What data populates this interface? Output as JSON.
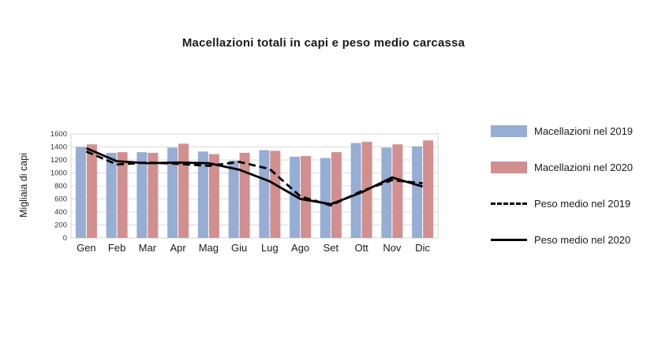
{
  "chart_data": {
    "type": "bar+line",
    "title": "Macellazioni totali in capi e peso medio carcassa",
    "ylabel": "Migliaia di capi",
    "ylim": [
      0,
      1600
    ],
    "yticks": [
      0,
      200,
      400,
      600,
      800,
      1000,
      1200,
      1400,
      1600
    ],
    "grid": true,
    "legend_position": "right",
    "categories": [
      "Gen",
      "Feb",
      "Mar",
      "Apr",
      "Mag",
      "Giu",
      "Lug",
      "Ago",
      "Set",
      "Ott",
      "Nov",
      "Dic"
    ],
    "bar_series": [
      {
        "name": "Macellazioni nel 2019",
        "color": "#96add4",
        "values": [
          1400,
          1310,
          1320,
          1390,
          1330,
          1190,
          1350,
          1250,
          1230,
          1460,
          1390,
          1410
        ]
      },
      {
        "name": "Macellazioni nel 2020",
        "color": "#d28f8f",
        "values": [
          1440,
          1320,
          1310,
          1450,
          1290,
          1310,
          1340,
          1260,
          1320,
          1480,
          1440,
          1500
        ]
      }
    ],
    "line_series": [
      {
        "name": "Peso medio nel 2019",
        "style": "dashed",
        "color": "#000000",
        "values": [
          1330,
          1130,
          1160,
          1140,
          1110,
          1170,
          1060,
          640,
          500,
          720,
          890,
          840
        ]
      },
      {
        "name": "Peso medio nel 2020",
        "style": "solid",
        "color": "#000000",
        "values": [
          1380,
          1180,
          1150,
          1160,
          1150,
          1050,
          870,
          600,
          520,
          700,
          930,
          790
        ]
      }
    ],
    "axis_color": "#9a9a9a",
    "gridline_color": "#dcdcdc",
    "plot_border_color": "#d4d4d4"
  }
}
